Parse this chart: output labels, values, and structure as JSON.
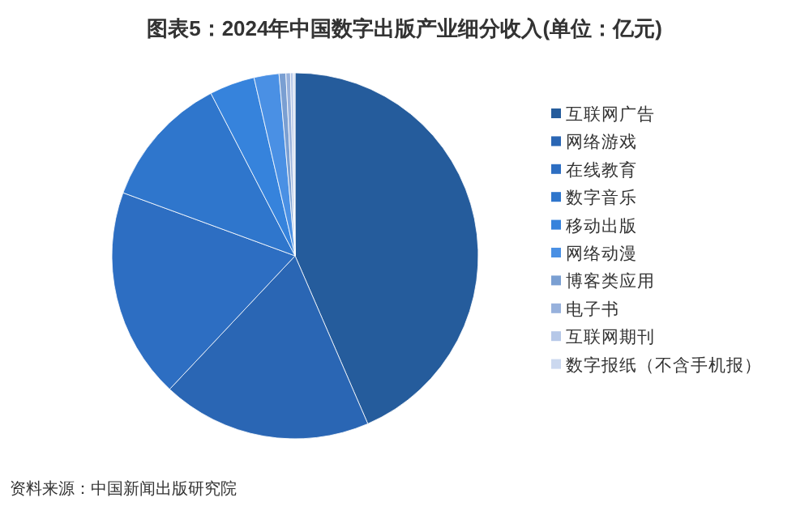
{
  "chart_data": {
    "type": "pie",
    "title": "图表5：2024年中国数字出版产业细分收入(单位：亿元)",
    "categories": [
      "互联网广告",
      "网络游戏",
      "在线教育",
      "数字音乐",
      "移动出版",
      "网络动漫",
      "博客类应用",
      "电子书",
      "互联网期刊",
      "数字报纸（不含手机报）"
    ],
    "values": [
      43.5,
      18.5,
      18.6,
      11.8,
      4.0,
      2.2,
      0.6,
      0.4,
      0.25,
      0.15
    ],
    "colors": [
      "#255c9c",
      "#2a66b4",
      "#2d6ec2",
      "#2f76cc",
      "#3683dc",
      "#4a90e4",
      "#7a9fd2",
      "#97b1dc",
      "#b6c8e8",
      "#cbd8ef"
    ],
    "legend": "right",
    "annotations": [
      "资料来源：中国新闻出版研究院"
    ]
  }
}
